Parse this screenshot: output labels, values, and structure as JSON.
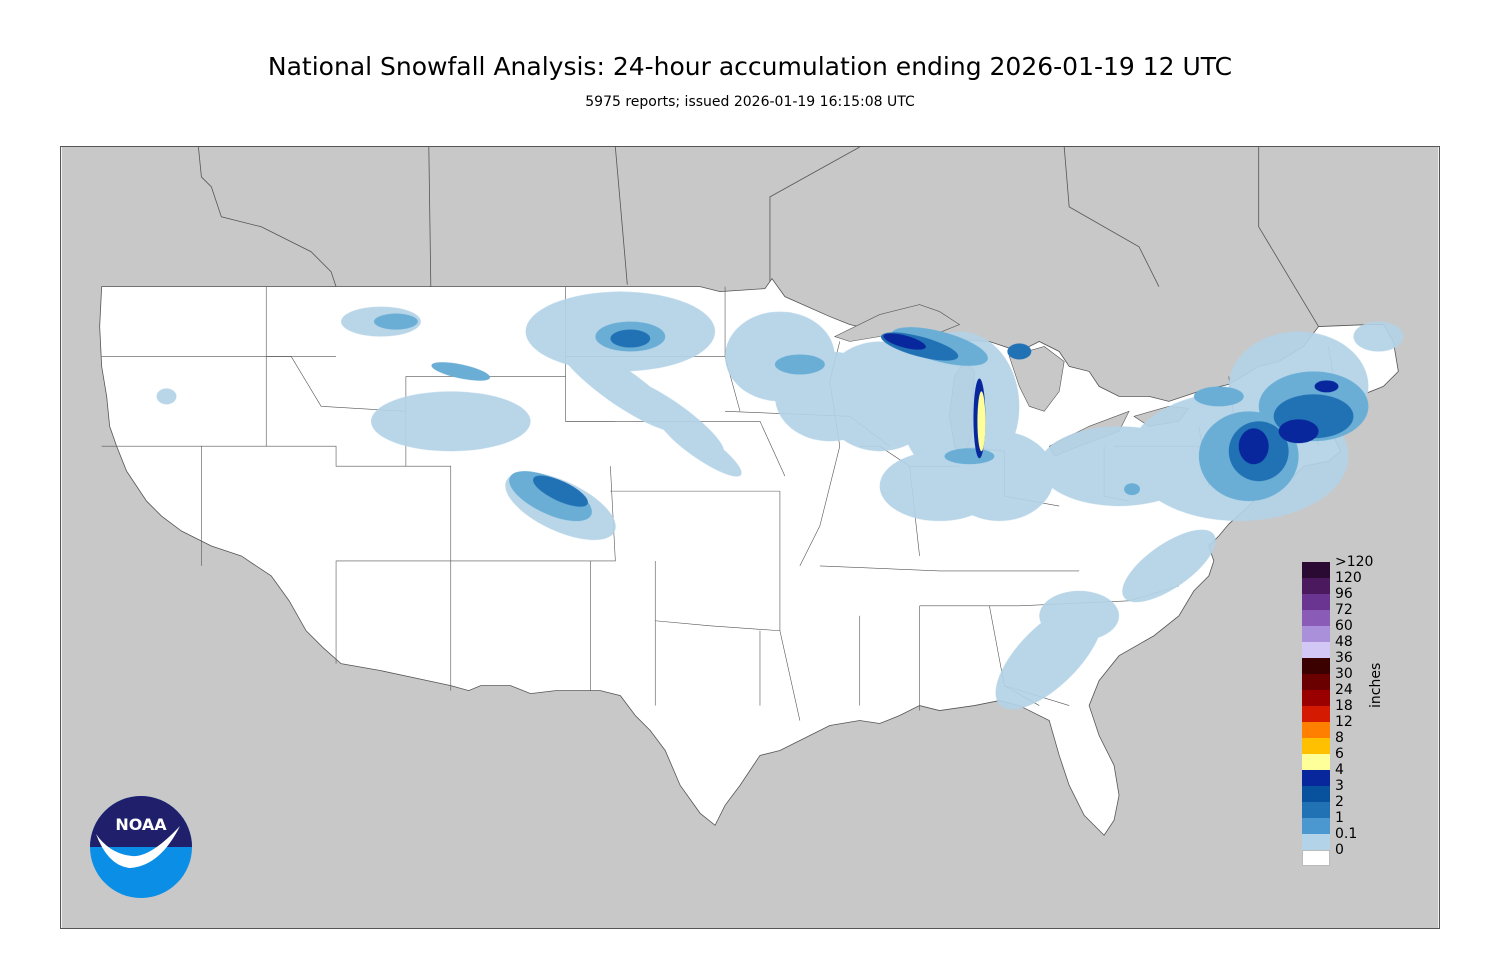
{
  "title": "National Snowfall Analysis: 24-hour accumulation ending 2026-01-19 12 UTC",
  "subtitle": "5975 reports; issued 2026-01-19 16:15:08 UTC",
  "map": {
    "background_color": "#c8c8c8",
    "land_color": "#ffffff",
    "boundary_color": "#555555"
  },
  "legend": {
    "units": "inches",
    "levels": [
      {
        "label": ">120",
        "color": "#2a0a33"
      },
      {
        "label": "120",
        "color": "#4b1a5e"
      },
      {
        "label": "96",
        "color": "#6a3591"
      },
      {
        "label": "72",
        "color": "#8a5cb8"
      },
      {
        "label": "60",
        "color": "#aa90db"
      },
      {
        "label": "48",
        "color": "#d2c7f5"
      },
      {
        "label": "36",
        "color": "#3b0000"
      },
      {
        "label": "30",
        "color": "#6b0000"
      },
      {
        "label": "24",
        "color": "#9a0000"
      },
      {
        "label": "18",
        "color": "#d41a00"
      },
      {
        "label": "12",
        "color": "#ff8000"
      },
      {
        "label": "8",
        "color": "#ffc000"
      },
      {
        "label": "6",
        "color": "#ffff99"
      },
      {
        "label": "4",
        "color": "#08279c"
      },
      {
        "label": "3",
        "color": "#08519c"
      },
      {
        "label": "2",
        "color": "#2171b5"
      },
      {
        "label": "1",
        "color": "#4a98cf"
      },
      {
        "label": "0.1",
        "color": "#b3d3e8"
      },
      {
        "label": "0",
        "color": "#ffffff"
      }
    ]
  },
  "logo": {
    "text": "NOAA",
    "colors": {
      "top": "#1f1f6b",
      "bottom": "#0b8fe6",
      "bird": "#ffffff"
    }
  },
  "icons": [
    "noaa-logo"
  ]
}
